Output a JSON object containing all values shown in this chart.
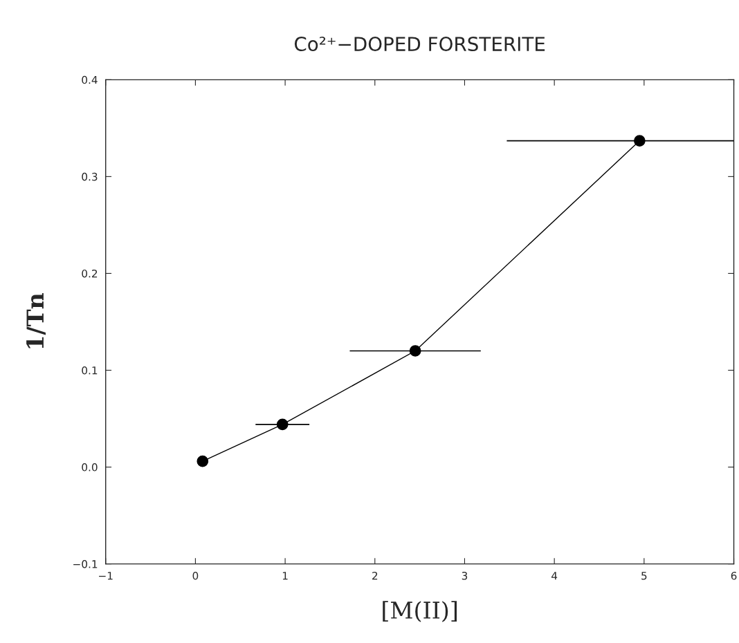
{
  "chart_data": {
    "type": "line",
    "title": "Co²⁺−DOPED FORSTERITE",
    "xlabel": "[M(II)]",
    "ylabel": "1/Tn",
    "x": [
      0.08,
      0.97,
      2.45,
      4.95
    ],
    "series": [
      {
        "color": "#000000",
        "values": [
          0.006,
          0.044,
          0.12,
          0.337
        ],
        "xerrors": [
          null,
          0.3,
          0.73,
          [
            3.47,
            6.0
          ]
        ]
      }
    ],
    "marker": "circle",
    "line_style": "solid",
    "grid": false,
    "legend": false,
    "xlim": [
      -1,
      6
    ],
    "xticks": [
      {
        "value": -1,
        "label": "−1"
      },
      0,
      1,
      2,
      3,
      4,
      5,
      6
    ],
    "ylim": [
      -0.1,
      0.4
    ],
    "yticks": [
      {
        "value": -0.1,
        "label": "−0.1"
      },
      {
        "value": 0.0,
        "label": "0.0"
      },
      0.1,
      0.2,
      0.3,
      0.4
    ]
  }
}
